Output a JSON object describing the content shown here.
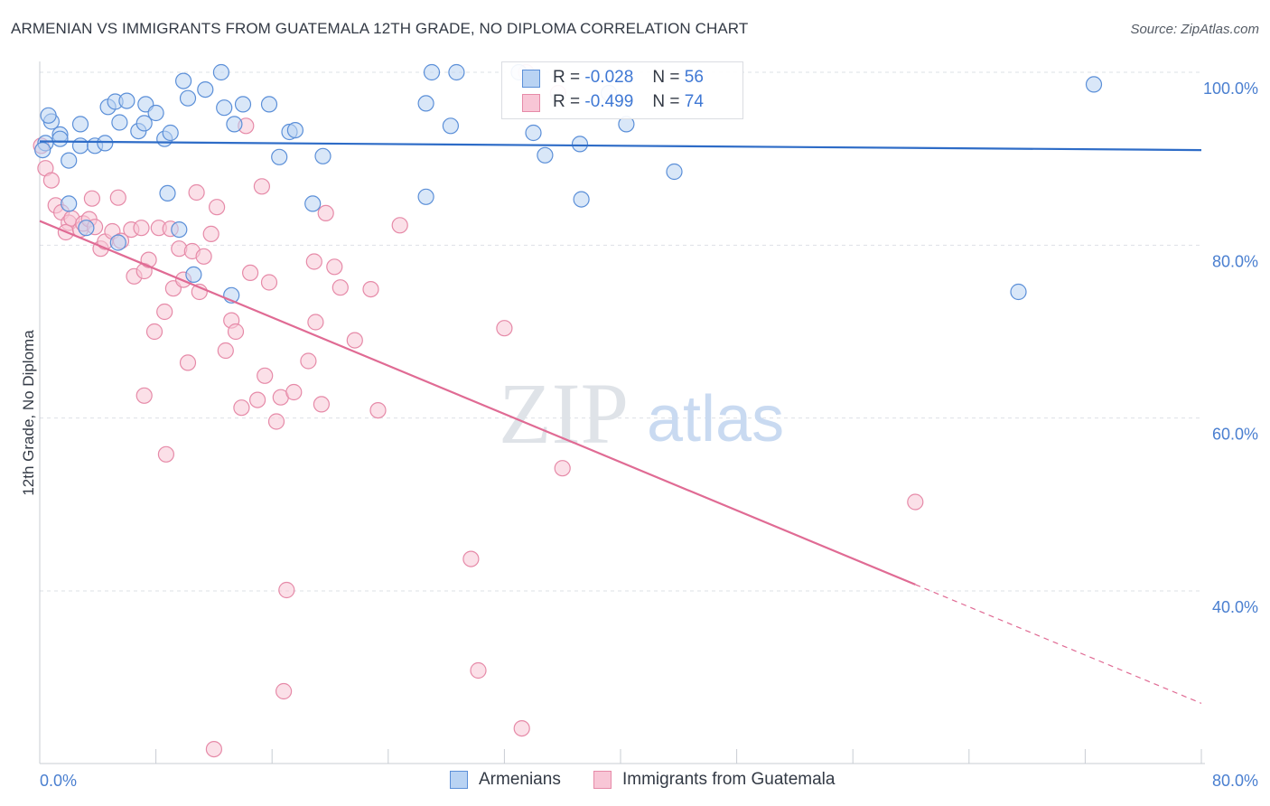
{
  "header": {
    "title": "ARMENIAN VS IMMIGRANTS FROM GUATEMALA 12TH GRADE, NO DIPLOMA CORRELATION CHART",
    "source": "Source: ZipAtlas.com"
  },
  "watermark": {
    "zip": "ZIP",
    "atlas": "atlas"
  },
  "colors": {
    "armenian_fill": "#b9d3f3",
    "armenian_stroke": "#5b8fd8",
    "armenian_line": "#2e6cc7",
    "guatemala_fill": "#f8c6d6",
    "guatemala_stroke": "#e68aa8",
    "guatemala_line": "#e06b94",
    "tick_text": "#4a7fd0",
    "grid": "#dde0e6"
  },
  "legend": {
    "rows": [
      {
        "r_label": "R =",
        "r_value": "-0.028",
        "n_label": "N =",
        "n_value": "56"
      },
      {
        "r_label": "R =",
        "r_value": "-0.499",
        "n_label": "N =",
        "n_value": "74"
      }
    ],
    "bottom": [
      "Armenians",
      "Immigrants from Guatemala"
    ]
  },
  "chart_data": {
    "type": "scatter",
    "title": "ARMENIAN VS IMMIGRANTS FROM GUATEMALA 12TH GRADE, NO DIPLOMA CORRELATION CHART",
    "xlabel": "",
    "ylabel": "12th Grade, No Diploma",
    "x_tick_labels": [
      "0.0%",
      "80.0%"
    ],
    "y_tick_labels": [
      "100.0%",
      "80.0%",
      "60.0%",
      "40.0%"
    ],
    "y_ticks": [
      100,
      80,
      60,
      40
    ],
    "xlim": [
      0,
      80
    ],
    "ylim": [
      20,
      102
    ],
    "grid": true,
    "legend_placement": "top-center",
    "series": [
      {
        "name": "Armenians",
        "R": -0.028,
        "N": 56,
        "trend": {
          "x": [
            0,
            80
          ],
          "y": [
            92.0,
            91.0
          ],
          "solid_until": 80
        },
        "points": [
          [
            0.4,
            91.8
          ],
          [
            0.8,
            94.3
          ],
          [
            0.6,
            95.0
          ],
          [
            1.4,
            92.8
          ],
          [
            2.0,
            89.8
          ],
          [
            1.4,
            92.3
          ],
          [
            2.8,
            94.0
          ],
          [
            2.8,
            91.5
          ],
          [
            3.8,
            91.5
          ],
          [
            4.5,
            91.8
          ],
          [
            4.7,
            96.0
          ],
          [
            5.2,
            96.6
          ],
          [
            5.5,
            94.2
          ],
          [
            6.0,
            96.7
          ],
          [
            6.8,
            93.2
          ],
          [
            7.2,
            94.1
          ],
          [
            7.3,
            96.3
          ],
          [
            8.0,
            95.3
          ],
          [
            8.6,
            92.3
          ],
          [
            9.0,
            93.0
          ],
          [
            9.9,
            99.0
          ],
          [
            10.2,
            97.0
          ],
          [
            11.4,
            98.0
          ],
          [
            12.7,
            95.9
          ],
          [
            12.5,
            100.0
          ],
          [
            13.4,
            94.0
          ],
          [
            14.0,
            96.3
          ],
          [
            15.8,
            96.3
          ],
          [
            16.5,
            90.2
          ],
          [
            17.2,
            93.1
          ],
          [
            17.6,
            93.3
          ],
          [
            19.5,
            90.3
          ],
          [
            26.6,
            96.4
          ],
          [
            27.0,
            100.0
          ],
          [
            28.7,
            100.0
          ],
          [
            28.3,
            93.8
          ],
          [
            33.0,
            100.0
          ],
          [
            34.0,
            93.0
          ],
          [
            34.8,
            90.4
          ],
          [
            37.2,
            91.7
          ],
          [
            39.2,
            97.6
          ],
          [
            40.4,
            94.0
          ],
          [
            43.7,
            88.5
          ],
          [
            8.8,
            86.0
          ],
          [
            18.8,
            84.8
          ],
          [
            26.6,
            85.6
          ],
          [
            37.3,
            85.3
          ],
          [
            2.0,
            84.8
          ],
          [
            5.4,
            80.3
          ],
          [
            9.6,
            81.8
          ],
          [
            3.2,
            82.0
          ],
          [
            10.6,
            76.6
          ],
          [
            13.2,
            74.2
          ],
          [
            67.4,
            74.6
          ],
          [
            72.6,
            98.6
          ],
          [
            0.2,
            91.0
          ]
        ]
      },
      {
        "name": "Immigrants from Guatemala",
        "R": -0.499,
        "N": 74,
        "trend": {
          "x": [
            0,
            80
          ],
          "y": [
            82.8,
            27.0
          ],
          "solid_until": 60.3
        },
        "points": [
          [
            0.4,
            88.9
          ],
          [
            0.8,
            87.5
          ],
          [
            1.1,
            84.6
          ],
          [
            1.5,
            83.8
          ],
          [
            2.0,
            82.6
          ],
          [
            1.8,
            81.5
          ],
          [
            2.2,
            83.1
          ],
          [
            2.8,
            81.8
          ],
          [
            3.0,
            82.5
          ],
          [
            3.6,
            85.4
          ],
          [
            3.4,
            83.0
          ],
          [
            3.8,
            82.1
          ],
          [
            4.2,
            79.6
          ],
          [
            4.5,
            80.4
          ],
          [
            5.0,
            81.6
          ],
          [
            5.4,
            85.5
          ],
          [
            5.6,
            80.5
          ],
          [
            6.3,
            81.8
          ],
          [
            6.5,
            76.4
          ],
          [
            7.0,
            82.0
          ],
          [
            7.2,
            77.0
          ],
          [
            7.5,
            78.3
          ],
          [
            7.9,
            70.0
          ],
          [
            8.2,
            82.0
          ],
          [
            8.6,
            72.3
          ],
          [
            9.0,
            81.9
          ],
          [
            9.2,
            75.0
          ],
          [
            9.6,
            79.6
          ],
          [
            9.9,
            76.0
          ],
          [
            10.2,
            66.4
          ],
          [
            10.5,
            79.3
          ],
          [
            10.8,
            86.1
          ],
          [
            11.0,
            74.6
          ],
          [
            11.3,
            78.7
          ],
          [
            11.8,
            81.3
          ],
          [
            12.2,
            84.4
          ],
          [
            12.8,
            67.8
          ],
          [
            13.2,
            71.3
          ],
          [
            13.5,
            70.0
          ],
          [
            13.9,
            61.2
          ],
          [
            14.2,
            93.8
          ],
          [
            14.5,
            76.8
          ],
          [
            15.0,
            62.1
          ],
          [
            15.3,
            86.8
          ],
          [
            15.5,
            64.9
          ],
          [
            15.8,
            75.7
          ],
          [
            16.3,
            59.6
          ],
          [
            16.6,
            62.4
          ],
          [
            17.0,
            40.1
          ],
          [
            17.5,
            63.0
          ],
          [
            18.5,
            66.6
          ],
          [
            18.9,
            78.1
          ],
          [
            19.0,
            71.1
          ],
          [
            19.4,
            61.6
          ],
          [
            19.7,
            83.7
          ],
          [
            20.3,
            77.5
          ],
          [
            20.7,
            75.1
          ],
          [
            21.7,
            69.0
          ],
          [
            22.8,
            74.9
          ],
          [
            23.3,
            60.9
          ],
          [
            24.8,
            82.3
          ],
          [
            29.7,
            43.7
          ],
          [
            30.2,
            30.8
          ],
          [
            32.0,
            70.4
          ],
          [
            33.2,
            24.1
          ],
          [
            33.5,
            100.0
          ],
          [
            36.0,
            54.2
          ],
          [
            35.7,
            97.6
          ],
          [
            60.3,
            50.3
          ],
          [
            7.2,
            62.6
          ],
          [
            8.7,
            55.8
          ],
          [
            12.0,
            21.7
          ],
          [
            16.8,
            28.4
          ],
          [
            0.1,
            91.5
          ]
        ]
      }
    ]
  }
}
